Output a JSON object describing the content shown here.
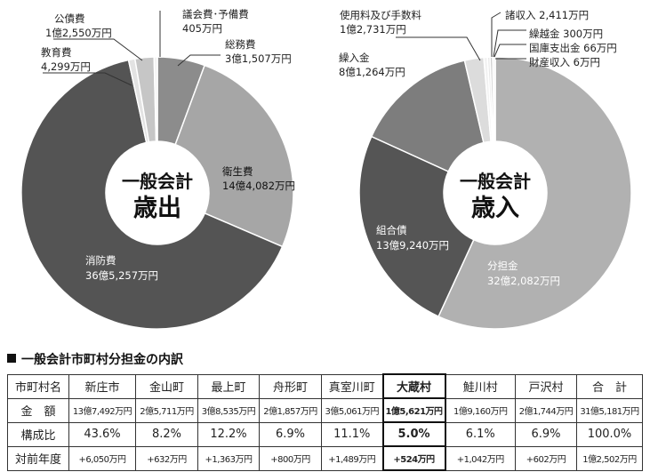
{
  "charts": [
    {
      "id": "expenditure",
      "center_line1": "一般会計",
      "center_line2": "歳出",
      "slices": [
        {
          "name": "総務費",
          "amount": "3億1,507万円",
          "value": 31507
        },
        {
          "name": "衛生費",
          "amount": "14億4,082万円",
          "value": 144082
        },
        {
          "name": "消防費",
          "amount": "36億5,257万円",
          "value": 365257
        },
        {
          "name": "教育費",
          "amount": "4,299万円",
          "value": 4299
        },
        {
          "name": "公債費",
          "amount": "1億2,550万円",
          "value": 12550
        },
        {
          "name": "議会費･予備費",
          "amount": "405万円",
          "value": 405
        }
      ]
    },
    {
      "id": "revenue",
      "center_line1": "一般会計",
      "center_line2": "歳入",
      "slices": [
        {
          "name": "分担金",
          "amount": "32億2,082万円",
          "value": 322082
        },
        {
          "name": "組合債",
          "amount": "13億9,240万円",
          "value": 139240
        },
        {
          "name": "繰入金",
          "amount": "8億1,264万円",
          "value": 81264
        },
        {
          "name": "使用料及び手数料",
          "amount": "1億2,731万円",
          "value": 12731
        },
        {
          "name": "諸収入",
          "amount": "2,411万円",
          "value": 2411
        },
        {
          "name": "繰越金",
          "amount": "300万円",
          "value": 300
        },
        {
          "name": "国庫支出金",
          "amount": "66万円",
          "value": 66
        },
        {
          "name": "財産収入",
          "amount": "6万円",
          "value": 6
        }
      ]
    }
  ],
  "table": {
    "title": "一般会計市町村分担金の内訳",
    "header": [
      "市町村名",
      "新庄市",
      "金山町",
      "最上町",
      "舟形町",
      "真室川町",
      "大蔵村",
      "鮭川村",
      "戸沢村",
      "合　計"
    ],
    "rows": [
      {
        "label": "金　額",
        "cells": [
          "13億7,492万円",
          "2億5,711万円",
          "3億8,535万円",
          "2億1,857万円",
          "3億5,061万円",
          "1億5,621万円",
          "1億9,160万円",
          "2億1,744万円",
          "31億5,181万円"
        ]
      },
      {
        "label": "構成比",
        "cells": [
          "43.6%",
          "8.2%",
          "12.2%",
          "6.9%",
          "11.1%",
          "5.0%",
          "6.1%",
          "6.9%",
          "100.0%"
        ]
      },
      {
        "label": "対前年度",
        "cells": [
          "+6,050万円",
          "+632万円",
          "+1,363万円",
          "+800万円",
          "+1,489万円",
          "+524万円",
          "+1,042万円",
          "+602万円",
          "1億2,502万円"
        ]
      }
    ],
    "highlight_column": "大蔵村"
  },
  "chart_data": [
    {
      "type": "pie",
      "title": "一般会計 歳出",
      "unit": "万円",
      "categories": [
        "総務費",
        "衛生費",
        "消防費",
        "教育費",
        "公債費",
        "議会費･予備費"
      ],
      "values": [
        31507,
        144082,
        365257,
        4299,
        12550,
        405
      ]
    },
    {
      "type": "pie",
      "title": "一般会計 歳入",
      "unit": "万円",
      "categories": [
        "分担金",
        "組合債",
        "繰入金",
        "使用料及び手数料",
        "諸収入",
        "繰越金",
        "国庫支出金",
        "財産収入"
      ],
      "values": [
        322082,
        139240,
        81264,
        12731,
        2411,
        300,
        66,
        6
      ]
    }
  ]
}
